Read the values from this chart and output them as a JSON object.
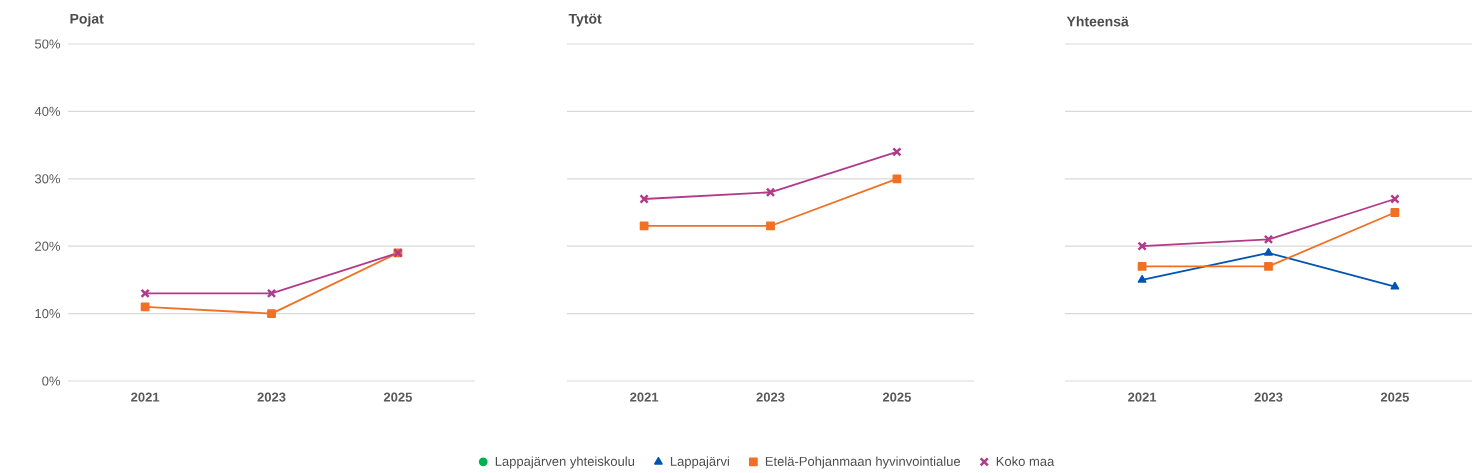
{
  "chart_data": [
    {
      "type": "line",
      "title": "Pojat",
      "categories": [
        "2021",
        "2023",
        "2025"
      ],
      "ylim": [
        0,
        50
      ],
      "yticks": [
        {
          "value": 0,
          "label": "0%"
        },
        {
          "value": 10,
          "label": "10%"
        },
        {
          "value": 20,
          "label": "20%"
        },
        {
          "value": 30,
          "label": "30%"
        },
        {
          "value": 40,
          "label": "40%"
        },
        {
          "value": 50,
          "label": "50%"
        }
      ],
      "grid": "y",
      "series": [
        {
          "color": "#f07024",
          "marker": "square",
          "values": [
            11,
            10,
            19
          ]
        },
        {
          "color": "#b23a8a",
          "marker": "cross",
          "values": [
            13,
            13,
            19
          ]
        }
      ]
    },
    {
      "type": "line",
      "title": "Tytöt",
      "categories": [
        "2021",
        "2023",
        "2025"
      ],
      "ylim": [
        0,
        50
      ],
      "yticks": [
        {
          "value": 0,
          "label": null
        },
        {
          "value": 10,
          "label": null
        },
        {
          "value": 20,
          "label": null
        },
        {
          "value": 30,
          "label": null
        },
        {
          "value": 40,
          "label": null
        },
        {
          "value": 50,
          "label": null
        }
      ],
      "grid": "y",
      "tick_labels": "x",
      "series": [
        {
          "color": "#f07024",
          "marker": "square",
          "values": [
            23,
            23,
            30
          ]
        },
        {
          "color": "#b23a8a",
          "marker": "cross",
          "values": [
            27,
            28,
            34
          ]
        }
      ]
    },
    {
      "type": "line",
      "title": "Yhteensä",
      "categories": [
        "2021",
        "2023",
        "2025"
      ],
      "ylim": [
        0,
        50
      ],
      "yticks": [
        {
          "value": 0,
          "label": null
        },
        {
          "value": 10,
          "label": null
        },
        {
          "value": 20,
          "label": null
        },
        {
          "value": 30,
          "label": null
        },
        {
          "value": 40,
          "label": null
        },
        {
          "value": 50,
          "label": null
        }
      ],
      "grid": "y",
      "tick_labels": "x",
      "legend": "bottom",
      "series": [
        {
          "name": "Lappajärven yhteiskoulu",
          "color": "#00b050",
          "marker": "circle",
          "values": [
            null,
            null,
            null
          ]
        },
        {
          "name": "Lappajärvi",
          "color": "#0054b4",
          "marker": "triangle",
          "values": [
            15,
            19,
            14
          ]
        },
        {
          "name": "Etelä-Pohjanmaan hyvinvointialue",
          "color": "#f07024",
          "marker": "square",
          "values": [
            17,
            17,
            25
          ]
        },
        {
          "name": "Koko maa",
          "color": "#b23a8a",
          "marker": "cross",
          "values": [
            20,
            21,
            27
          ]
        }
      ]
    }
  ]
}
